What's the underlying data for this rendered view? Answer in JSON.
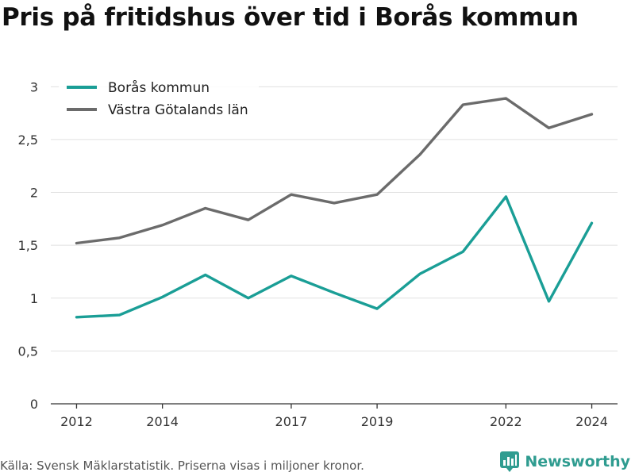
{
  "title": "Pris på fritidshus över tid i Borås kommun",
  "source": "Källa: Svensk Mäklarstatistik. Priserna visas i miljoner kronor.",
  "brand": {
    "name": "Newsworthy",
    "icon": "newsworthy-logo-icon",
    "color": "#2f9c90"
  },
  "chart_data": {
    "type": "line",
    "title": "Pris på fritidshus över tid i Borås kommun",
    "xlabel": "",
    "ylabel": "",
    "x": [
      2012,
      2013,
      2014,
      2015,
      2016,
      2017,
      2018,
      2019,
      2020,
      2021,
      2022,
      2023,
      2024
    ],
    "x_ticks": [
      2012,
      2014,
      2017,
      2019,
      2022,
      2024
    ],
    "y_ticks": [
      "0",
      "0,5",
      "1",
      "1,5",
      "2",
      "2,5",
      "3"
    ],
    "ylim": [
      0,
      3.1
    ],
    "grid": true,
    "legend": "top-left",
    "series": [
      {
        "name": "Borås kommun",
        "color": "#1a9e96",
        "values": [
          0.82,
          0.84,
          1.01,
          1.22,
          1.0,
          1.21,
          1.05,
          0.9,
          1.23,
          1.44,
          1.96,
          0.97,
          1.71
        ]
      },
      {
        "name": "Västra Götalands län",
        "color": "#6b6b6b",
        "values": [
          1.52,
          1.57,
          1.69,
          1.85,
          1.74,
          1.98,
          1.9,
          1.98,
          2.36,
          2.83,
          2.89,
          2.61,
          2.74
        ]
      }
    ]
  }
}
